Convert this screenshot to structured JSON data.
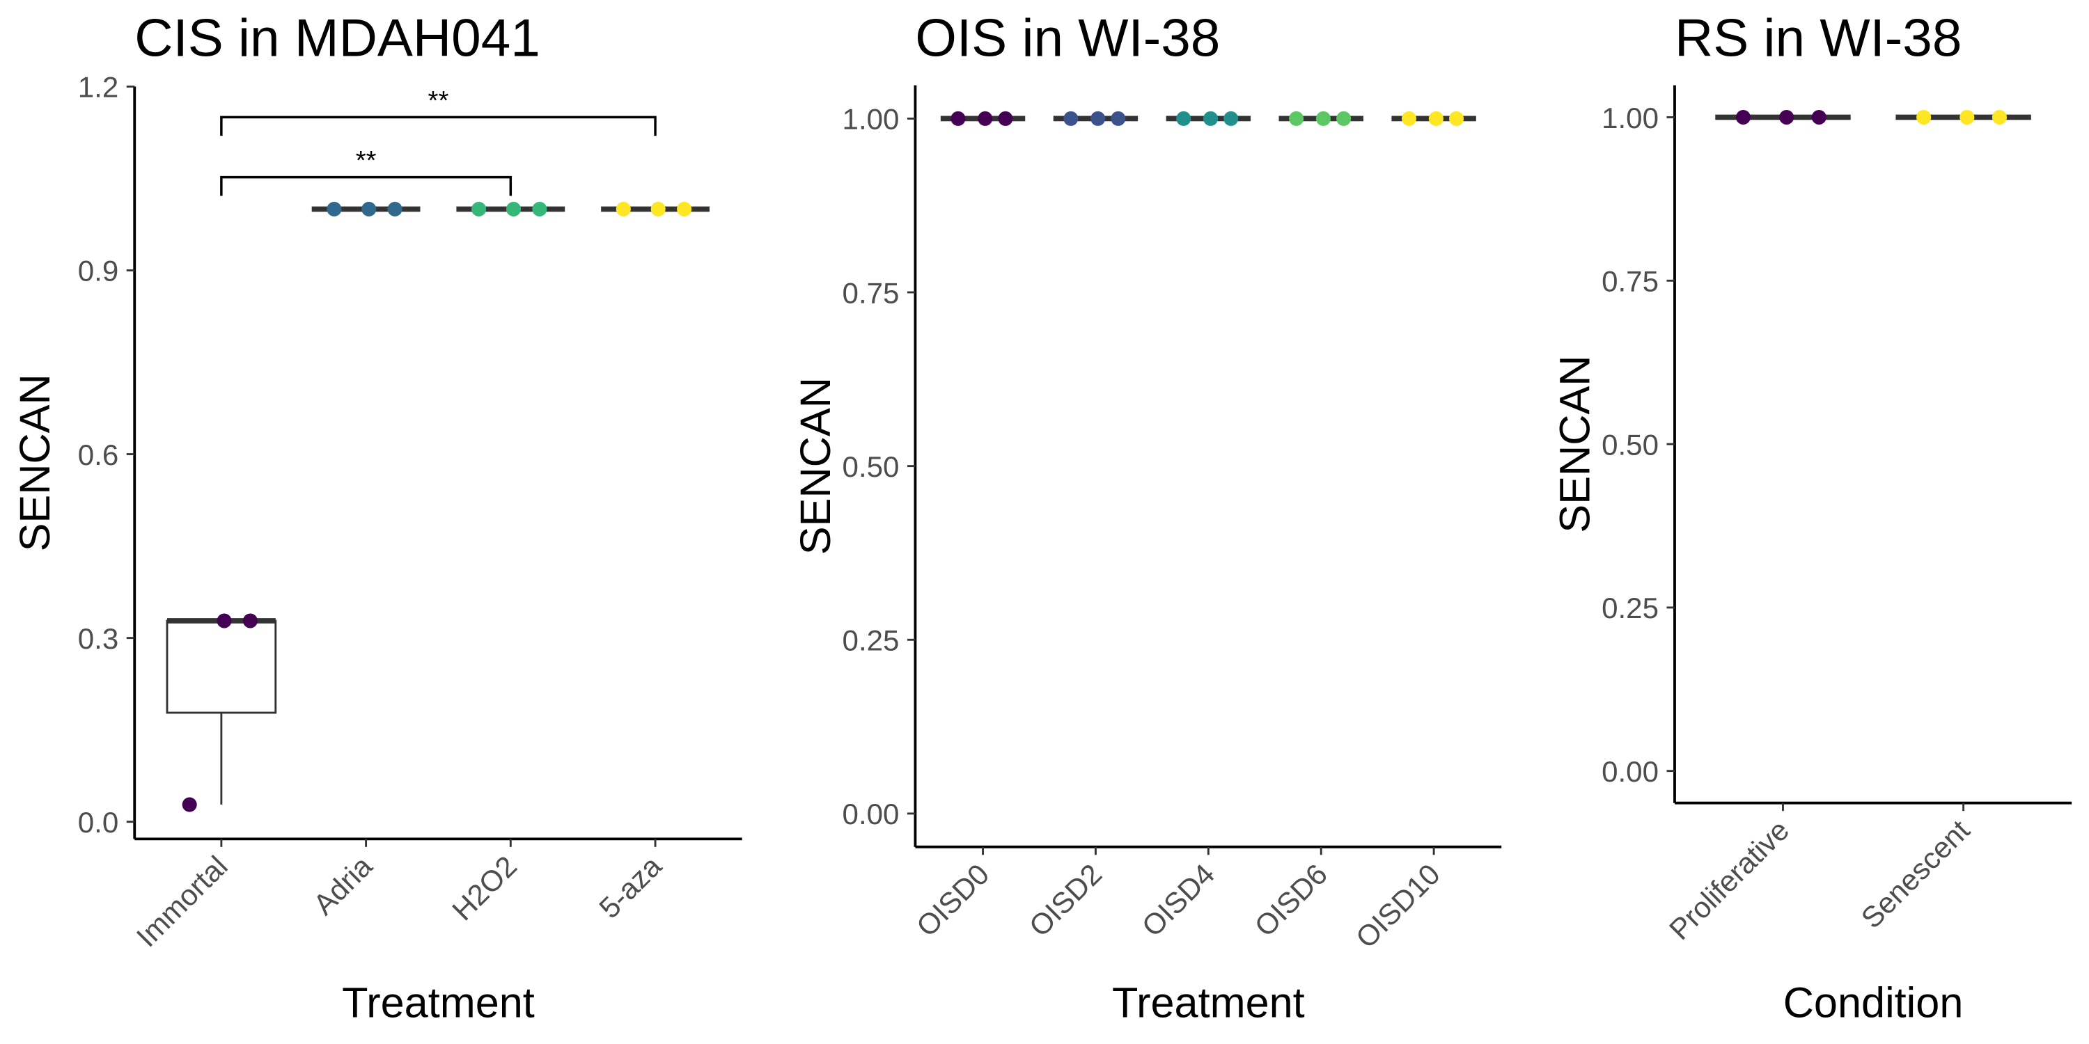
{
  "chart_data": [
    {
      "type": "box",
      "title": "CIS in MDAH041",
      "x_label": "Treatment",
      "y_label": "SENCAN",
      "categories": [
        "Immortal",
        "Adria",
        "H2O2",
        "5-aza"
      ],
      "colors": [
        "#440154",
        "#31688e",
        "#35b779",
        "#fde725"
      ],
      "ylim": [
        -0.028,
        1.2
      ],
      "yticks": [
        {
          "value": 0,
          "label": "0.0"
        },
        0.3,
        0.6,
        0.9,
        1.2
      ],
      "boxes": [
        {
          "min": 0.028,
          "q1": 0.178,
          "median": 0.328,
          "q3": 0.328,
          "max": 0.328
        },
        {
          "min": 1,
          "q1": 1,
          "median": 1,
          "q3": 1,
          "max": 1
        },
        {
          "min": 1,
          "q1": 1,
          "median": 1,
          "q3": 1,
          "max": 1
        },
        {
          "min": 1,
          "q1": 1,
          "median": 1,
          "q3": 1,
          "max": 1
        }
      ],
      "points": [
        [
          0.028,
          0.328,
          0.328
        ],
        [
          1,
          1,
          1
        ],
        [
          1,
          1,
          1
        ],
        [
          1,
          1,
          1
        ]
      ],
      "comparisons": [
        {
          "groups": [
            "Immortal",
            "H2O2"
          ],
          "label": "**",
          "y": 1.052
        },
        {
          "groups": [
            "Immortal",
            "5-aza"
          ],
          "label": "**",
          "y": 1.15
        }
      ]
    },
    {
      "type": "box",
      "title": "OIS in WI-38",
      "x_label": "Treatment",
      "y_label": "SENCAN",
      "categories": [
        "OISD0",
        "OISD2",
        "OISD4",
        "OISD6",
        "OISD10"
      ],
      "colors": [
        "#440154",
        "#3b528b",
        "#21908d",
        "#5dc863",
        "#fde725"
      ],
      "ylim": [
        -0.048,
        1.048
      ],
      "yticks": [
        {
          "value": 0,
          "label": "0.00"
        },
        0.25,
        {
          "value": 0.5,
          "label": "0.50"
        },
        0.75,
        {
          "value": 1,
          "label": "1.00"
        }
      ],
      "boxes": [
        {
          "min": 1,
          "q1": 1,
          "median": 1,
          "q3": 1,
          "max": 1
        },
        {
          "min": 1,
          "q1": 1,
          "median": 1,
          "q3": 1,
          "max": 1
        },
        {
          "min": 1,
          "q1": 1,
          "median": 1,
          "q3": 1,
          "max": 1
        },
        {
          "min": 1,
          "q1": 1,
          "median": 1,
          "q3": 1,
          "max": 1
        },
        {
          "min": 1,
          "q1": 1,
          "median": 1,
          "q3": 1,
          "max": 1
        }
      ],
      "points": [
        [
          1,
          1,
          1
        ],
        [
          1,
          1,
          1
        ],
        [
          1,
          1,
          1
        ],
        [
          1,
          1,
          1
        ],
        [
          1,
          1,
          1
        ]
      ]
    },
    {
      "type": "box",
      "title": "RS in WI-38",
      "x_label": "Condition",
      "y_label": "SENCAN",
      "categories": [
        "Proliferative",
        "Senescent"
      ],
      "colors": [
        "#440154",
        "#fde725"
      ],
      "ylim": [
        -0.049,
        1.049
      ],
      "yticks": [
        {
          "value": 0,
          "label": "0.00"
        },
        0.25,
        {
          "value": 0.5,
          "label": "0.50"
        },
        0.75,
        {
          "value": 1,
          "label": "1.00"
        }
      ],
      "boxes": [
        {
          "min": 1,
          "q1": 1,
          "median": 1,
          "q3": 1,
          "max": 1
        },
        {
          "min": 1,
          "q1": 1,
          "median": 1,
          "q3": 1,
          "max": 1
        }
      ],
      "points": [
        [
          1,
          1,
          1
        ],
        [
          1,
          1,
          1
        ]
      ]
    }
  ]
}
